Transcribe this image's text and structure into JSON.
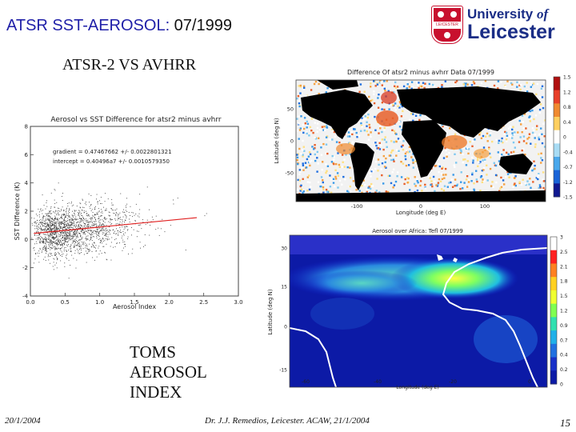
{
  "slide": {
    "title_part1": "ATSR SST-AEROSOL:",
    "title_part2": " 07/1999",
    "subtitle": "ATSR-2 VS AVHRR",
    "toms_line1": "TOMS",
    "toms_line2": "AEROSOL",
    "toms_line3": "INDEX"
  },
  "logo": {
    "line1_a": "University ",
    "line1_b": "of",
    "line2": "Leicester",
    "crest_text": "LEICESTER"
  },
  "footer": {
    "date": "20/1/2004",
    "credit": "Dr. J.J. Remedios, Leicester. ACAW, 21/1/2004",
    "page": "15"
  },
  "colors": {
    "title_accent": "#1f1fa8",
    "logo_blue": "#1a2d86",
    "logo_red": "#c8102e",
    "fit_line": "#e02020"
  },
  "chart_data": [
    {
      "type": "scatter",
      "title": "Aerosol vs SST Difference for atsr2 minus avhrr",
      "xlabel": "Aerosol Index",
      "ylabel": "SST Difference (K)",
      "xlim": [
        0.0,
        3.0
      ],
      "ylim": [
        -4,
        8
      ],
      "x_ticks": [
        "0.0",
        "0.5",
        "1.0",
        "1.5",
        "2.0",
        "2.5",
        "3.0"
      ],
      "y_ticks": [
        "-4",
        "-2",
        "0",
        "2",
        "4",
        "6",
        "8"
      ],
      "annotations": [
        "gradient = 0.47467662 +/- 0.0022801321",
        "intercept = 0.40496a7 +/- 0.0010579350"
      ],
      "fit_line": {
        "slope": 0.47467662,
        "intercept": 0.404967
      },
      "grid": false,
      "legend": "none"
    },
    {
      "type": "heatmap",
      "title": "Difference Of atsr2 minus avhrr Data 07/1999",
      "xlabel": "Longitude (deg E)",
      "ylabel": "Latitude (deg N)",
      "x_ticks": [
        "-100",
        "0",
        "100"
      ],
      "y_ticks": [
        "-50",
        "0",
        "50"
      ],
      "colorbar_ticks": [
        "1.5",
        "1.2",
        "0.8",
        "0.4",
        "0",
        "-0.4",
        "-0.7",
        "-1.2",
        "-1.5"
      ]
    },
    {
      "type": "heatmap",
      "title": "Aerosol over Africa: Tefl    07/1999",
      "xlabel": "Longitude (deg E)",
      "ylabel": "Latitude (deg N)",
      "x_ticks": [
        "-60",
        "-40",
        "-20",
        "0"
      ],
      "y_ticks": [
        "-15",
        "0",
        "15",
        "30"
      ],
      "colorbar_ticks": [
        "3",
        "2.5",
        "2.1",
        "1.8",
        "1.5",
        "1.2",
        "0.9",
        "0.7",
        "0.4",
        "0.2",
        "0"
      ]
    }
  ]
}
